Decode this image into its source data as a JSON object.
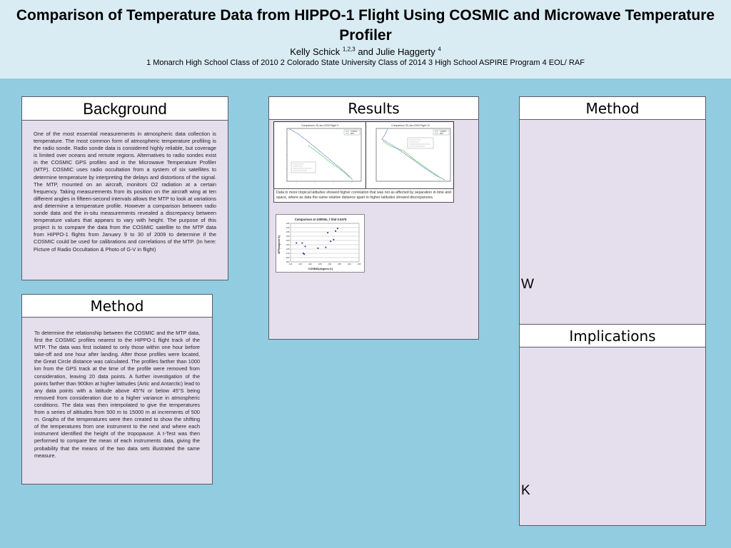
{
  "header": {
    "title": "Comparison of Temperature Data from HIPPO-1 Flight Using COSMIC and Microwave Temperature Profiler",
    "author1": "Kelly Schick ",
    "author1_sup": "1,2,3",
    "and_text": " and  Julie Haggerty ",
    "author2_sup": "4",
    "affiliations": "1 Monarch High School Class of 2010 2 Colorado State University Class of 2014 3 High School ASPIRE Program 4 EOL/ RAF"
  },
  "background": {
    "heading": "Background",
    "text": "One of the most essential measurements in atmospheric data collection is temperature. The most common form of atmospheric temperature profiling is the radio sonde. Radio sonde data is considered highly reliable, but coverage is limited over oceans and remote regions. Alternatives to radio sondes exist in the COSMIC GPS profiles and in the Microwave Temperature Profiler (MTP). COSMIC uses radio occultation from a system of six satellites to determine temperature by interpreting the delays and distortions of the signal. The MTP, mounted on an aircraft, monitors O2 radiation at a certain frequency. Taking measurements from its position on the aircraft wing at ten different angles in fifteen-second intervals allows the MTP to look at variations and determine a temperature profile. However a comparison between radio sonde data and the in-situ measurements revealed a discrepancy between temperature values that appears to vary with height. The purpose of this project is to compare the data from the COSMIC satellite to the MTP data from HIPPO-1 flights from January 9 to 30 of 2009 to determine if the COSMIC could be used for calibrations and correlations of the MTP.  (In here: Picture of Radio Occultation & Photo of G-V in flight)"
  },
  "method_left": {
    "heading": "Method",
    "text": "To determine the relationship between the COSMIC and the MTP data, first the COSMIC profiles nearest to the HIPPO-1 flight track of the MTP. The data was first isolated to only those within one hour before take-off and one hour after landing. After those profiles were located, the Great Circle distance was calculated. The profiles farther than 1000 km from the GPS track at the time of the profile were removed from consideration, leaving 20 data points. A further investigation of the points farther than 900km at higher latitudes (Artic and Antarctic) lead to any data points with a latitude above 45°N or below 45°S being removed from consideration due to a higher variance in atmospheric conditions. The data was then interpolated to give the temperatures from a series of altitudes from 500 m to 15000 m at increments of 500 m.  Graphs of the temperatures were then created to show the shifting of the temperatures from one instrument to the next and where each instrument identified the height of the tropopause.  A t-Test was then performed to compare the mean of each instruments data, giving the probability that the means of the two data sets illustrated the same measure."
  },
  "results": {
    "heading": "Results",
    "caption": "Data in more tropical latitudes showed higher correlation that was not as affected by separation in time and space, where as data the same relative distance apart in higher latitudes showed discrepancies."
  },
  "method_right": {
    "heading": "Method",
    "letter": "W"
  },
  "implications": {
    "heading": "Implications",
    "letter": "K"
  },
  "scatter": {
    "title": "Comparison at 10000m, t Stat 0.0479",
    "xlabel": "COSMIC(degrees K)",
    "ylabel": "MTP(degrees K)",
    "chart_data": {
      "type": "scatter",
      "title": "Comparison at 10000m, t Stat 0.0479",
      "xlabel": "COSMIC(degrees K)",
      "ylabel": "MTP(degrees K)",
      "xlim": [
        210,
        245
      ],
      "ylim": [
        200,
        245
      ],
      "xticks": [
        "210",
        "215",
        "220",
        "225",
        "230",
        "235",
        "240",
        "245"
      ],
      "yticks": [
        "200",
        "205",
        "210",
        "215",
        "220",
        "225",
        "230",
        "235",
        "240",
        "245"
      ],
      "x": [
        213,
        216,
        216.5,
        217,
        217.5,
        224,
        228,
        229,
        230.5,
        232,
        233,
        234
      ],
      "y": [
        222,
        222,
        210,
        209,
        218,
        216,
        217,
        234,
        224,
        226,
        236,
        239
      ],
      "grid": true
    }
  },
  "profile_left": {
    "title": "Comparison 28-Jan-2009 Flight 9",
    "legend": [
      "COSMIC",
      "MTP"
    ],
    "colors": [
      "#5b6dcf",
      "#3fbf4a"
    ]
  },
  "profile_right": {
    "title": "Comparison 30-Jan-2009 Flight 10",
    "legend": [
      "COSMIC",
      "MTP"
    ],
    "colors": [
      "#5b6dcf",
      "#3fbf4a"
    ]
  }
}
